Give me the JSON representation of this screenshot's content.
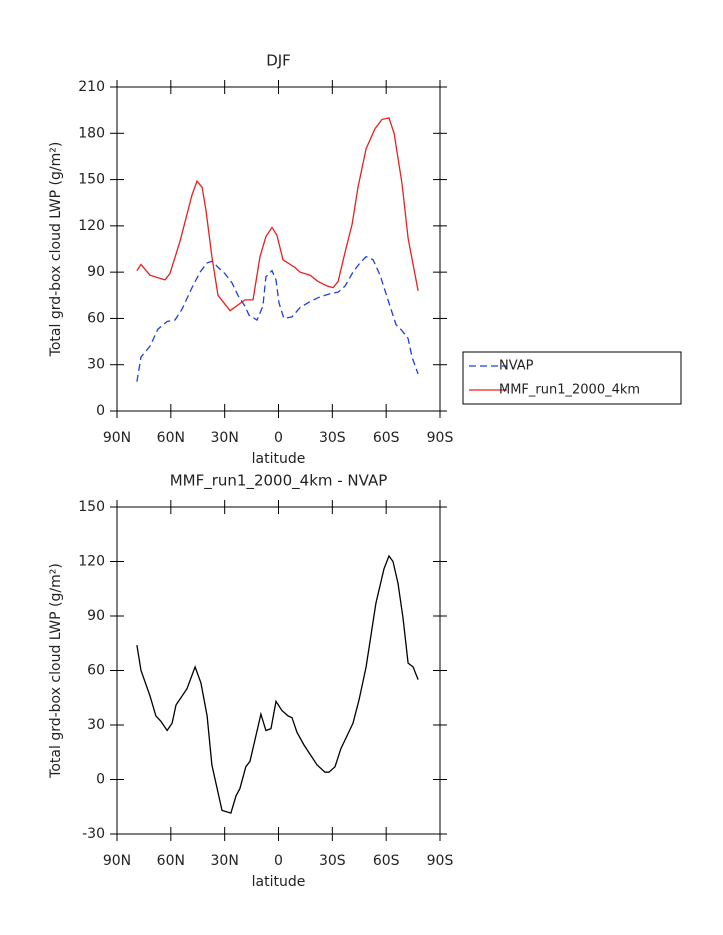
{
  "chart_data": [
    {
      "type": "line",
      "title": "DJF",
      "xlabel": "latitude",
      "ylabel": "Total grd-box cloud LWP (g/m²)",
      "xlim": [
        90,
        -90
      ],
      "xticks": [
        {
          "value": 90,
          "label": "90N"
        },
        {
          "value": 60,
          "label": "60N"
        },
        {
          "value": 30,
          "label": "30N"
        },
        0,
        {
          "value": -30,
          "label": "30S"
        },
        {
          "value": -60,
          "label": "60S"
        },
        {
          "value": -90,
          "label": "90S"
        }
      ],
      "ylim": [
        0,
        210
      ],
      "yticks": [
        0,
        30,
        60,
        90,
        120,
        150,
        180,
        210
      ],
      "legend": "right",
      "series": [
        {
          "name": "NVAP",
          "color": "#1f3fe0",
          "dashed": true,
          "x": [
            78.9,
            76.6,
            71.6,
            67.2,
            62.1,
            57.7,
            53.8,
            48.2,
            43.7,
            39.8,
            37.1,
            32.6,
            29.8,
            25.9,
            22.6,
            18.7,
            16.4,
            12.0,
            8.7,
            7.0,
            3.6,
            1.4,
            -0.3,
            -3.0,
            -7.5,
            -12.0,
            -17.6,
            -23.1,
            -28.7,
            -33.2,
            -37.1,
            -41.5,
            -45.4,
            -48.8,
            -52.7,
            -56.6,
            -61.6,
            -65.5,
            -68.9,
            -72.2,
            -74.4,
            -77.8
          ],
          "values": [
            19,
            35,
            42,
            53,
            58,
            59,
            66,
            80,
            90,
            96,
            97,
            92,
            89,
            83,
            75,
            68,
            62,
            59,
            68,
            87,
            91,
            85,
            70,
            60,
            61,
            67,
            71,
            74,
            76,
            77,
            81,
            90,
            96,
            100,
            98,
            88,
            70,
            56,
            52,
            47,
            35,
            24
          ]
        },
        {
          "name": "MMF_run1_2000_4km",
          "color": "#e8201f",
          "dashed": false,
          "x": [
            78.9,
            76.6,
            71.6,
            63.3,
            60.5,
            54.9,
            48.2,
            45.4,
            42.6,
            40.4,
            37.1,
            33.7,
            27.0,
            18.7,
            14.2,
            10.3,
            7.0,
            3.6,
            0.9,
            -2.5,
            -9.2,
            -12.0,
            -17.6,
            -22.0,
            -27.1,
            -30.4,
            -33.2,
            -37.1,
            -41.0,
            -44.3,
            -48.8,
            -53.8,
            -57.7,
            -61.6,
            -64.4,
            -68.9,
            -72.2,
            -77.8
          ],
          "values": [
            91,
            95,
            88,
            85,
            89,
            110,
            140,
            149,
            145,
            130,
            100,
            75,
            65,
            72,
            72,
            100,
            113,
            119,
            114,
            98,
            93,
            90,
            88,
            84,
            81,
            80,
            84,
            103,
            121,
            145,
            170,
            183,
            189,
            190,
            180,
            147,
            112,
            78
          ]
        }
      ]
    },
    {
      "type": "line",
      "title": "MMF_run1_2000_4km - NVAP",
      "xlabel": "latitude",
      "ylabel": "Total grd-box cloud LWP (g/m²)",
      "xlim": [
        90,
        -90
      ],
      "xticks": [
        {
          "value": 90,
          "label": "90N"
        },
        {
          "value": 60,
          "label": "60N"
        },
        {
          "value": 30,
          "label": "30N"
        },
        0,
        {
          "value": -30,
          "label": "30S"
        },
        {
          "value": -60,
          "label": "60S"
        },
        {
          "value": -90,
          "label": "90S"
        }
      ],
      "ylim": [
        -30,
        150
      ],
      "yticks": [
        -30,
        0,
        30,
        60,
        90,
        120,
        150
      ],
      "series": [
        {
          "color": "#000000",
          "dashed": false,
          "x": [
            78.9,
            76.6,
            71.6,
            68.3,
            65.5,
            62.1,
            59.3,
            57.1,
            51.0,
            46.5,
            43.2,
            39.8,
            37.1,
            31.5,
            26.5,
            23.7,
            21.5,
            18.2,
            15.9,
            9.8,
            7.0,
            4.2,
            1.4,
            -1.9,
            -5.3,
            -7.5,
            -10.3,
            -14.2,
            -21.5,
            -25.9,
            -28.1,
            -31.5,
            -34.8,
            -38.2,
            -41.5,
            -44.9,
            -48.8,
            -54.3,
            -58.8,
            -61.6,
            -63.8,
            -66.6,
            -69.4,
            -72.2,
            -75.0,
            -77.8
          ],
          "values": [
            74,
            60,
            46,
            35,
            32,
            27,
            31,
            41,
            50,
            62,
            53,
            35,
            8,
            -17,
            -18.5,
            -9,
            -5,
            7,
            10,
            36,
            27,
            28,
            43,
            38,
            35,
            34,
            26,
            19,
            8,
            4,
            4,
            7,
            17,
            24,
            31,
            44,
            62,
            97,
            116,
            123,
            120,
            108,
            89,
            64,
            62,
            55
          ]
        }
      ]
    }
  ]
}
